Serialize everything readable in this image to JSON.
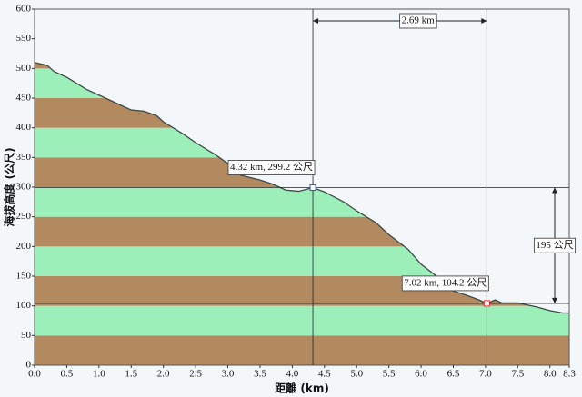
{
  "chart_data": {
    "type": "area",
    "x_label": "距離 (km)",
    "y_label": "海拔高度 (公尺)",
    "x": [
      0.0,
      0.2,
      0.3,
      0.5,
      0.8,
      1.0,
      1.2,
      1.5,
      1.7,
      1.9,
      2.0,
      2.3,
      2.5,
      2.8,
      3.0,
      3.2,
      3.5,
      3.7,
      3.9,
      4.1,
      4.32,
      4.5,
      4.8,
      5.0,
      5.3,
      5.5,
      5.8,
      6.0,
      6.3,
      6.5,
      6.7,
      6.9,
      7.02,
      7.15,
      7.25,
      7.5,
      7.8,
      8.0,
      8.2,
      8.3
    ],
    "values": [
      510,
      505,
      495,
      485,
      465,
      455,
      445,
      430,
      428,
      420,
      410,
      390,
      375,
      355,
      340,
      320,
      312,
      305,
      295,
      293,
      299.2,
      292,
      275,
      260,
      240,
      220,
      195,
      170,
      145,
      125,
      118,
      110,
      104.2,
      110,
      105,
      105,
      98,
      92,
      88,
      88
    ],
    "line_color": "#3c4a46",
    "band_colors": [
      "#b38a60",
      "#9cefb9"
    ],
    "xlim": [
      0,
      8.3
    ],
    "xticks": [
      {
        "value": 0,
        "label": "0.0"
      },
      0.5,
      {
        "value": 1,
        "label": "1.0"
      },
      1.5,
      {
        "value": 2,
        "label": "2.0"
      },
      2.5,
      {
        "value": 3,
        "label": "3.0"
      },
      3.5,
      {
        "value": 4,
        "label": "4.0"
      },
      4.5,
      {
        "value": 5,
        "label": "5.0"
      },
      5.5,
      {
        "value": 6,
        "label": "6.0"
      },
      6.5,
      {
        "value": 7,
        "label": "7.0"
      },
      7.5,
      {
        "value": 8,
        "label": "8.0"
      },
      8.3
    ],
    "ylim": [
      0,
      600
    ],
    "yticks": [
      0,
      50,
      100,
      150,
      200,
      250,
      300,
      350,
      400,
      450,
      500,
      550,
      600
    ],
    "markers": [
      {
        "x": 4.32,
        "y": 299.2,
        "label": "4.32 km, 299.2 公尺",
        "color": "#3355cc"
      },
      {
        "x": 7.02,
        "y": 104.2,
        "label": "7.02 km, 104.2 公尺",
        "color": "#dd3333"
      }
    ],
    "distance_label": "2.69 km",
    "height_label": "195 公尺"
  }
}
